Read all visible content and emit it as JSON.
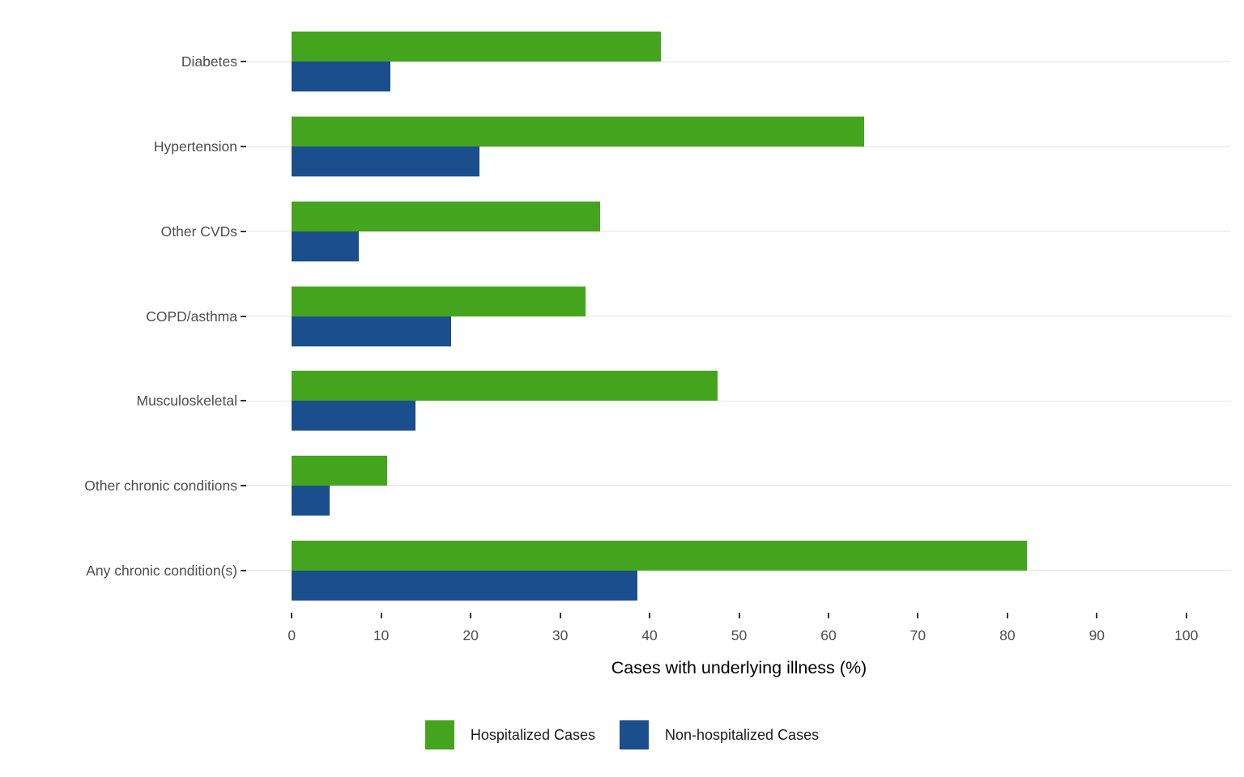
{
  "chart_data": {
    "type": "bar",
    "orientation": "horizontal",
    "title": "",
    "xlabel": "Cases with underlying illness (%)",
    "ylabel": "",
    "xlim": [
      0,
      100
    ],
    "x_ticks": [
      0,
      10,
      20,
      30,
      40,
      50,
      60,
      70,
      80,
      90,
      100
    ],
    "grid": "horizontal-only",
    "legend_position": "bottom",
    "categories": [
      "Diabetes",
      "Hypertension",
      "Other CVDs",
      "COPD/asthma",
      "Musculoskeletal",
      "Other chronic conditions",
      "Any chronic condition(s)"
    ],
    "series": [
      {
        "name": "Hospitalized Cases",
        "color": "#45a41d",
        "values": [
          41.3,
          64.0,
          34.5,
          32.8,
          47.6,
          10.7,
          82.2
        ]
      },
      {
        "name": "Non-hospitalized Cases",
        "color": "#1b4e8c",
        "values": [
          11.0,
          21.0,
          7.5,
          17.8,
          13.8,
          4.2,
          38.6
        ]
      }
    ]
  },
  "colors": {
    "hospitalized": "#45a41d",
    "non_hospitalized": "#1b4e8c",
    "gridline": "#e3e3e3",
    "axis_text": "#4d4d4d",
    "tick_mark": "#333333",
    "axis_title": "#000000",
    "background": "#ffffff"
  },
  "legend": {
    "items": [
      {
        "label": "Hospitalized Cases",
        "color": "#45a41d"
      },
      {
        "label": "Non-hospitalized Cases",
        "color": "#1b4e8c"
      }
    ]
  },
  "axis": {
    "x_title": "Cases with underlying illness (%)"
  }
}
